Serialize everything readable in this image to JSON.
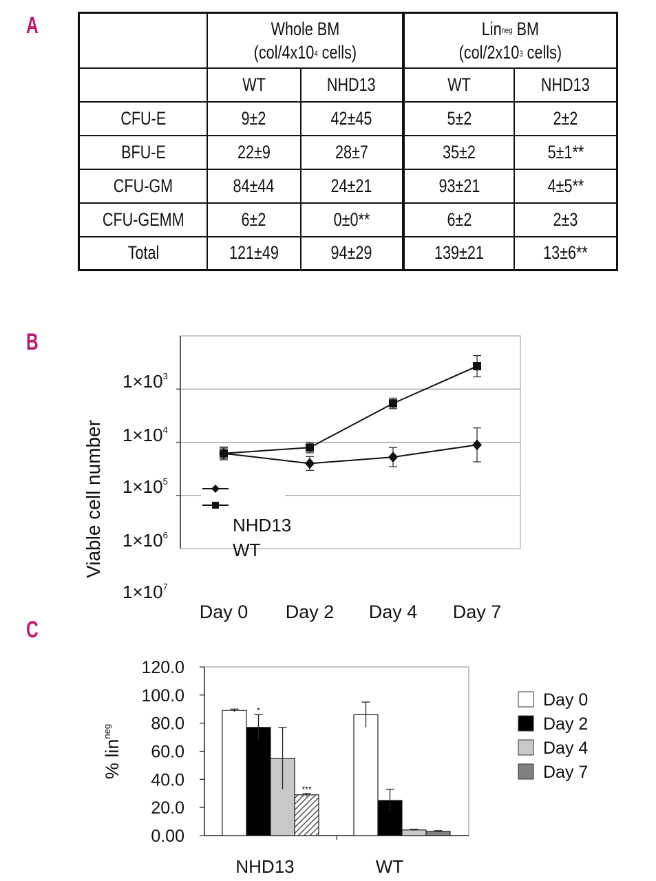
{
  "panels": {
    "a": "A",
    "b": "B",
    "c": "C"
  },
  "table": {
    "group_headers": [
      {
        "line1": "Whole BM",
        "line2_prefix": "(col/4x10",
        "line2_sup": "4",
        "line2_suffix": " cells)"
      },
      {
        "line1_main": "Lin",
        "line1_sup": "neg",
        "line1_rest": " BM",
        "line2_prefix": "(col/2x10",
        "line2_sup": "3",
        "line2_suffix": " cells)"
      }
    ],
    "sub_headers": [
      "WT",
      "NHD13",
      "WT",
      "NHD13"
    ],
    "rows": [
      {
        "label": "CFU-E",
        "cells": [
          "9±2",
          "42±45",
          "5±2",
          "2±2"
        ]
      },
      {
        "label": "BFU-E",
        "cells": [
          "22±9",
          "28±7",
          "35±2",
          "5±1**"
        ]
      },
      {
        "label": "CFU-GM",
        "cells": [
          "84±44",
          "24±21",
          "93±21",
          "4±5**"
        ]
      },
      {
        "label": "CFU-GEMM",
        "cells": [
          "6±2",
          "0±0**",
          "6±2",
          "2±3"
        ]
      },
      {
        "label": "Total",
        "cells": [
          "121±49",
          "94±29",
          "139±21",
          "13±6**"
        ]
      }
    ]
  },
  "chart_data": [
    {
      "type": "line",
      "panel": "B",
      "ylabel": "Viable cell number",
      "y_tick_labels": [
        {
          "base": "1×10",
          "exp": "3"
        },
        {
          "base": "1×10",
          "exp": "4"
        },
        {
          "base": "1×10",
          "exp": "5"
        },
        {
          "base": "1×10",
          "exp": "6"
        },
        {
          "base": "1×10",
          "exp": "7"
        }
      ],
      "categories": [
        "Day 0",
        "Day 2",
        "Day 4",
        "Day 7"
      ],
      "ylim_log_units": [
        0,
        4
      ],
      "series": [
        {
          "name": "NHD13",
          "marker": "square",
          "values": [
            1.79,
            1.9,
            2.73,
            3.43
          ],
          "errors": [
            0.12,
            0.1,
            0.1,
            0.2
          ]
        },
        {
          "name": "WT",
          "marker": "diamond",
          "values": [
            1.79,
            1.6,
            1.72,
            1.95
          ],
          "errors": [
            0.1,
            0.13,
            0.18,
            0.32
          ]
        }
      ],
      "legend": [
        "NHD13",
        "WT"
      ],
      "legend_position": "bottom-left"
    },
    {
      "type": "bar",
      "panel": "C",
      "ylabel_main": "% lin",
      "ylabel_sup": "neg",
      "ylim": [
        0,
        120
      ],
      "y_tick_labels": [
        "0.00",
        "20.0",
        "40.0",
        "60.0",
        "80.0",
        "100.0",
        "120.0"
      ],
      "y_ticks": [
        0,
        20,
        40,
        60,
        80,
        100,
        120
      ],
      "categories": [
        "NHD13",
        "WT"
      ],
      "series": [
        {
          "name": "Day 0",
          "color": "#ffffff",
          "values": [
            89,
            86
          ],
          "errors": [
            1,
            9
          ]
        },
        {
          "name": "Day 2",
          "color": "#000000",
          "values": [
            77,
            25
          ],
          "errors": [
            9,
            8
          ]
        },
        {
          "name": "Day 4",
          "color": "#c8c8c8",
          "values": [
            55,
            4
          ],
          "errors": [
            22,
            0.5
          ]
        },
        {
          "name": "Day 7",
          "color": "#808080",
          "values": [
            29,
            3
          ],
          "errors": [
            1,
            0.5
          ]
        }
      ],
      "annotations": [
        {
          "category": "NHD13",
          "series": "Day 2",
          "text": "*"
        },
        {
          "category": "NHD13",
          "series": "Day 7",
          "text": "***"
        }
      ],
      "legend_position": "right"
    }
  ]
}
